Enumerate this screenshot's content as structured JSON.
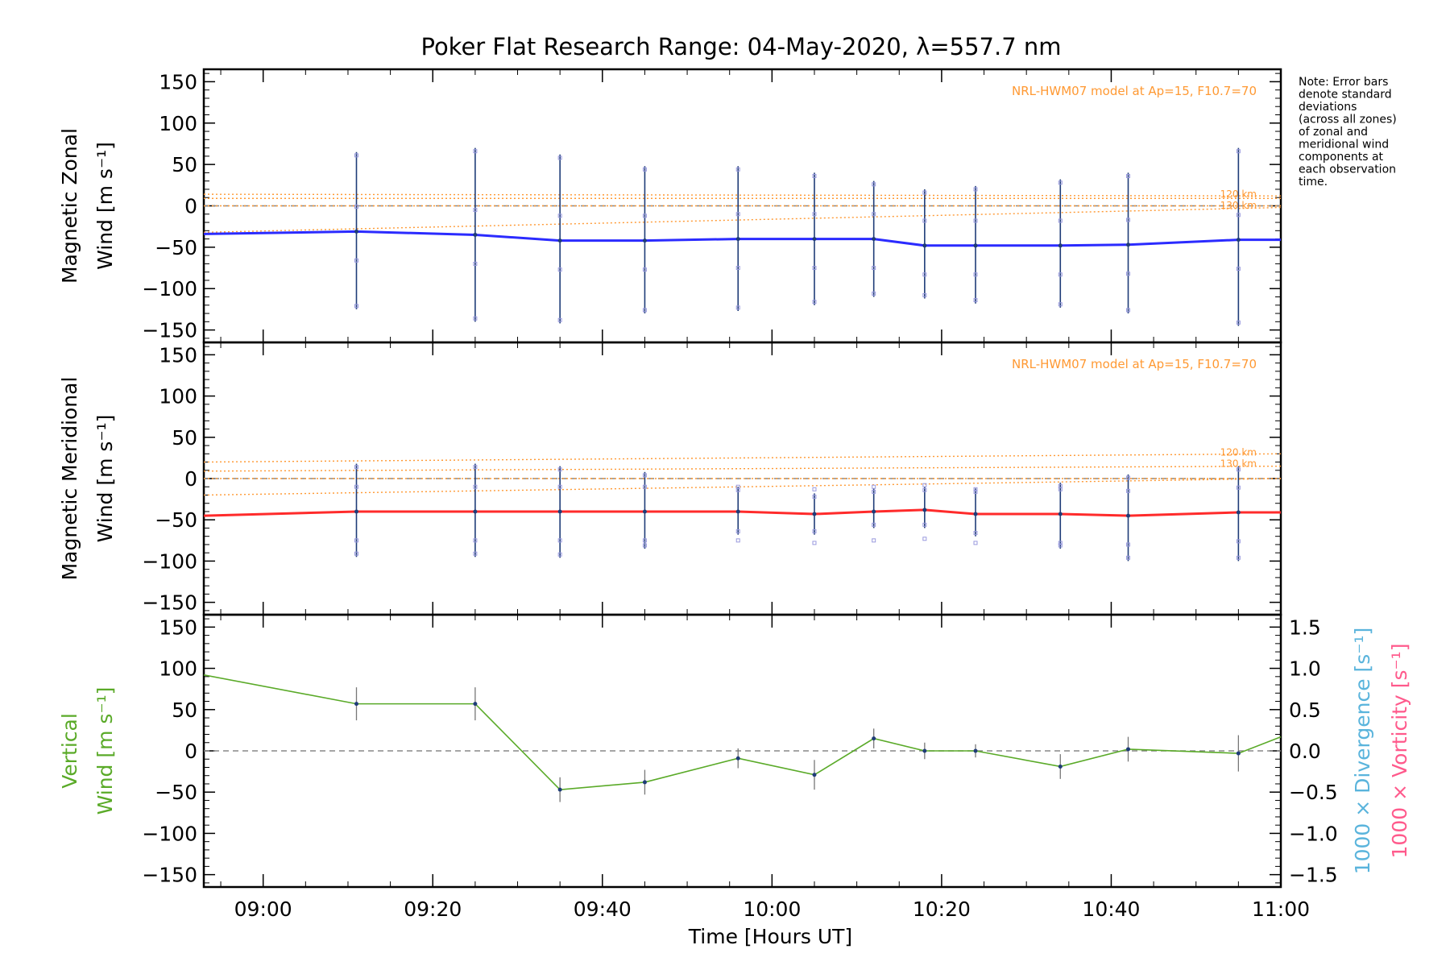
{
  "title": "Poker Flat Research Range: 04-May-2020, λ=557.7 nm",
  "note": [
    "Note: Error bars",
    "denote standard",
    "deviations",
    "(across all zones)",
    "of zonal and",
    "meridional wind",
    "components at",
    "each observation",
    "time."
  ],
  "colors": {
    "zonal": "#2b2bff",
    "meridional": "#ff2b2b",
    "vertical": "#5aaa28",
    "model": "#ff9933",
    "divergence_label": "#5ab4dc",
    "vorticity_label": "#ff5a8c",
    "error_bar": "#1f3c78",
    "zone_square": "#9a9ade"
  },
  "chart_data": [
    {
      "type": "line",
      "panel": "zonal",
      "ylabel_line1": "Magnetic Zonal",
      "ylabel_line2": "Wind",
      "ylabel_unit": "[m s⁻¹]",
      "model_label": "NRL-HWM07 model at Ap=15, F10.7=70",
      "model_alt_labels": [
        "120 km",
        "130 km"
      ],
      "ylim": [
        -165,
        165
      ],
      "yticks": [
        150,
        100,
        50,
        0,
        -50,
        -100,
        -150
      ],
      "series": [
        {
          "x": [
            "08:53",
            "09:11",
            "09:25",
            "09:35",
            "09:45",
            "09:56",
            "10:05",
            "10:12",
            "10:18",
            "10:24",
            "10:34",
            "10:42",
            "10:55",
            "11:00"
          ],
          "values": [
            -34,
            -31,
            -35,
            -42,
            -42,
            -40,
            -40,
            -40,
            -48,
            -48,
            -48,
            -47,
            -41,
            -41
          ],
          "err_low": [
            null,
            -125,
            -140,
            -142,
            -130,
            -127,
            -120,
            -110,
            -112,
            -118,
            -123,
            -130,
            -145,
            null
          ],
          "err_high": [
            null,
            65,
            70,
            62,
            48,
            48,
            40,
            30,
            20,
            24,
            32,
            40,
            70,
            null
          ]
        }
      ],
      "model": [
        {
          "name": "model-1",
          "values_start": 14,
          "values_end": 12
        },
        {
          "name": "model-2",
          "values_start": 9,
          "values_end": 9
        },
        {
          "name": "model-3",
          "values_start": 0,
          "values_end": 0
        },
        {
          "name": "model-4",
          "values_start": -32,
          "values_end": -2
        }
      ]
    },
    {
      "type": "line",
      "panel": "meridional",
      "ylabel_line1": "Magnetic Meridional",
      "ylabel_line2": "Wind",
      "ylabel_unit": "[m s⁻¹]",
      "model_label": "NRL-HWM07 model at Ap=15, F10.7=70",
      "model_alt_labels": [
        "120 km",
        "130 km"
      ],
      "ylim": [
        -165,
        165
      ],
      "yticks": [
        150,
        100,
        50,
        0,
        -50,
        -100,
        -150
      ],
      "series": [
        {
          "x": [
            "08:53",
            "09:11",
            "09:25",
            "09:35",
            "09:45",
            "09:56",
            "10:05",
            "10:12",
            "10:18",
            "10:24",
            "10:34",
            "10:42",
            "10:55",
            "11:00"
          ],
          "values": [
            -45,
            -40,
            -40,
            -40,
            -40,
            -40,
            -43,
            -40,
            -38,
            -43,
            -43,
            -45,
            -41,
            -41
          ],
          "err_low": [
            null,
            -95,
            -95,
            -96,
            -85,
            -68,
            -68,
            -60,
            -60,
            -70,
            -85,
            -100,
            -100,
            null
          ],
          "err_high": [
            null,
            18,
            18,
            15,
            8,
            -10,
            -18,
            -12,
            -10,
            -12,
            -5,
            5,
            15,
            null
          ]
        }
      ],
      "model": [
        {
          "name": "model-1",
          "values_start": 20,
          "values_end": 30
        },
        {
          "name": "model-2",
          "values_start": 9,
          "values_end": 15
        },
        {
          "name": "model-3",
          "values_start": 0,
          "values_end": 0
        },
        {
          "name": "model-4",
          "values_start": -20,
          "values_end": 0
        }
      ]
    },
    {
      "type": "line",
      "panel": "vertical",
      "ylabel_line1": "Vertical",
      "ylabel_line2": "Wind",
      "ylabel_unit": "[m s⁻¹]",
      "right_label_divergence": "1000 × Divergence [s⁻¹]",
      "right_label_vorticity": "1000 × Vorticity [s⁻¹]",
      "ylim": [
        -165,
        165
      ],
      "yticks": [
        150,
        100,
        50,
        0,
        -50,
        -100,
        -150
      ],
      "y2ticks": [
        "1.5",
        "1.0",
        "0.5",
        "0.0",
        "−0.5",
        "−1.0",
        "−1.5"
      ],
      "xticks": [
        "09:00",
        "09:20",
        "09:40",
        "10:00",
        "10:20",
        "10:40",
        "11:00"
      ],
      "xlabel": "Time [Hours UT]",
      "series": [
        {
          "x": [
            "08:53",
            "09:11",
            "09:25",
            "09:35",
            "09:45",
            "09:56",
            "10:05",
            "10:12",
            "10:18",
            "10:24",
            "10:34",
            "10:42",
            "10:55",
            "11:00"
          ],
          "values": [
            92,
            57,
            57,
            -47,
            -38,
            -9,
            -29,
            15,
            0,
            0,
            -19,
            2,
            -3,
            17
          ],
          "err": [
            null,
            20,
            20,
            15,
            15,
            12,
            18,
            12,
            10,
            8,
            15,
            15,
            22,
            null
          ]
        }
      ]
    }
  ]
}
